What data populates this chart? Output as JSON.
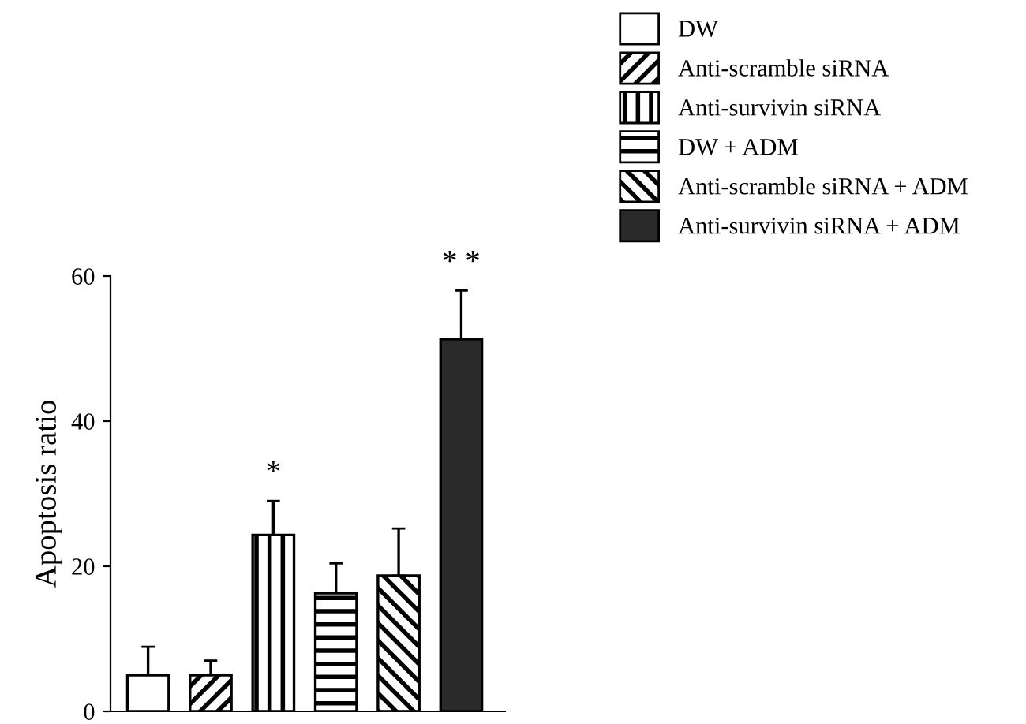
{
  "chart_data": {
    "type": "bar",
    "ylabel": "Apoptosis ratio",
    "categories": [
      null,
      null,
      null,
      null,
      null,
      null
    ],
    "series": [
      {
        "name": "DW",
        "color": "#ffffff",
        "values": [
          5,
          null,
          null,
          null,
          null,
          null
        ],
        "errors": [
          [
            5,
            8.9
          ],
          null,
          null,
          null,
          null,
          null
        ]
      },
      {
        "name": "Anti-scramble siRNA",
        "color": "#ffffff",
        "values": [
          null,
          5,
          null,
          null,
          null,
          null
        ],
        "errors": [
          null,
          [
            5,
            7
          ],
          null,
          null,
          null,
          null
        ]
      },
      {
        "name": "Anti-survivin siRNA",
        "color": "#ffffff",
        "values": [
          null,
          null,
          24.3,
          null,
          null,
          null
        ],
        "errors": [
          null,
          null,
          [
            24.3,
            29
          ],
          null,
          null,
          null
        ],
        "value_labels": [
          null,
          null,
          "*",
          null,
          null,
          null
        ]
      },
      {
        "name": "DW + ADM",
        "color": "#ffffff",
        "values": [
          null,
          null,
          null,
          16.3,
          null,
          null
        ],
        "errors": [
          null,
          null,
          null,
          [
            16.3,
            20.4
          ],
          null,
          null
        ]
      },
      {
        "name": "Anti-scramble siRNA + ADM",
        "color": "#ffffff",
        "values": [
          null,
          null,
          null,
          null,
          18.7,
          null
        ],
        "errors": [
          null,
          null,
          null,
          null,
          [
            18.7,
            25.2
          ],
          null
        ]
      },
      {
        "name": "Anti-survivin siRNA + ADM",
        "color": "#2a2a2a",
        "values": [
          null,
          null,
          null,
          null,
          null,
          51.3
        ],
        "errors": [
          null,
          null,
          null,
          null,
          null,
          [
            51.3,
            58
          ]
        ],
        "value_labels": [
          null,
          null,
          null,
          null,
          null,
          "* *"
        ]
      }
    ],
    "ylim": [
      0,
      60
    ],
    "yticks": [
      0,
      20,
      40,
      60
    ],
    "grid": false,
    "legend": "top right"
  }
}
